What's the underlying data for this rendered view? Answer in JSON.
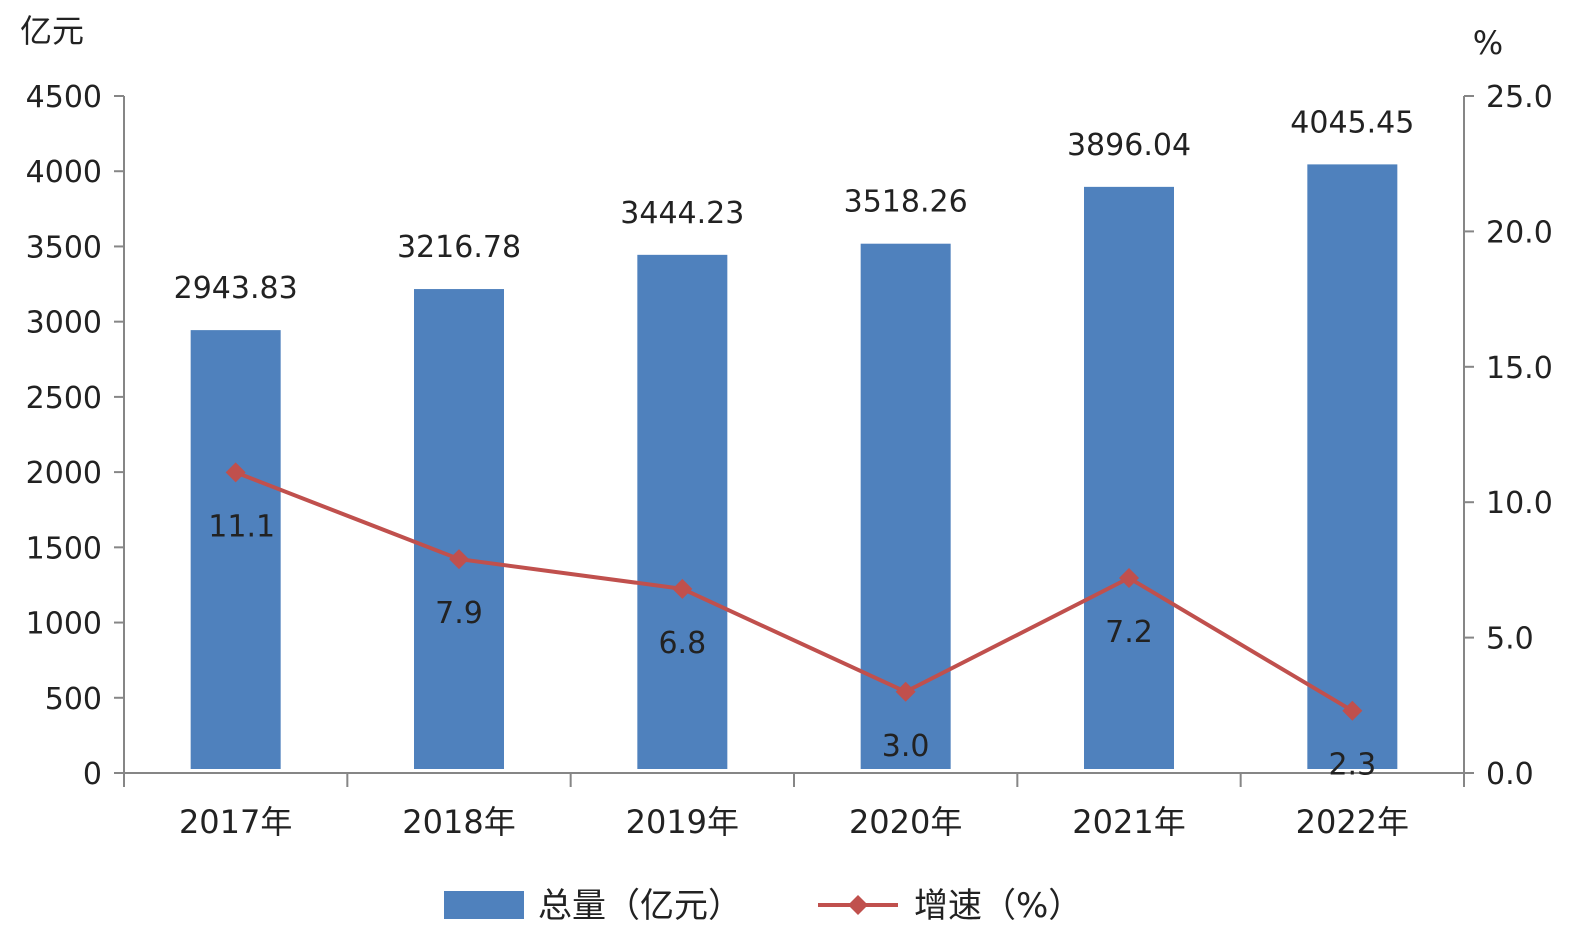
{
  "chart_data": {
    "type": "bar",
    "categories": [
      "2017年",
      "2018年",
      "2019年",
      "2020年",
      "2021年",
      "2022年"
    ],
    "series": [
      {
        "name": "总量（亿元）",
        "type": "bar",
        "axis": "left",
        "values": [
          2943.83,
          3216.78,
          3444.23,
          3518.26,
          3896.04,
          4045.45
        ],
        "labels": [
          "2943.83",
          "3216.78",
          "3444.23",
          "3518.26",
          "3896.04",
          "4045.45"
        ],
        "color": "#4f81bd"
      },
      {
        "name": "增速（%）",
        "type": "line",
        "axis": "right",
        "values": [
          11.1,
          7.9,
          6.8,
          3.0,
          7.2,
          2.3
        ],
        "labels": [
          "11.1",
          "7.9",
          "6.8",
          "3.0",
          "7.2",
          "2.3"
        ],
        "color": "#c0504d"
      }
    ],
    "left_axis": {
      "unit": "亿元",
      "ylim": [
        0,
        4500
      ],
      "ticks": [
        "0",
        "500",
        "1000",
        "1500",
        "2000",
        "2500",
        "3000",
        "3500",
        "4000",
        "4500"
      ]
    },
    "right_axis": {
      "unit": "%",
      "ylim": [
        0,
        25
      ],
      "ticks": [
        "0.0",
        "5.0",
        "10.0",
        "15.0",
        "20.0",
        "25.0"
      ]
    },
    "grid": false,
    "legend": "bottom"
  }
}
